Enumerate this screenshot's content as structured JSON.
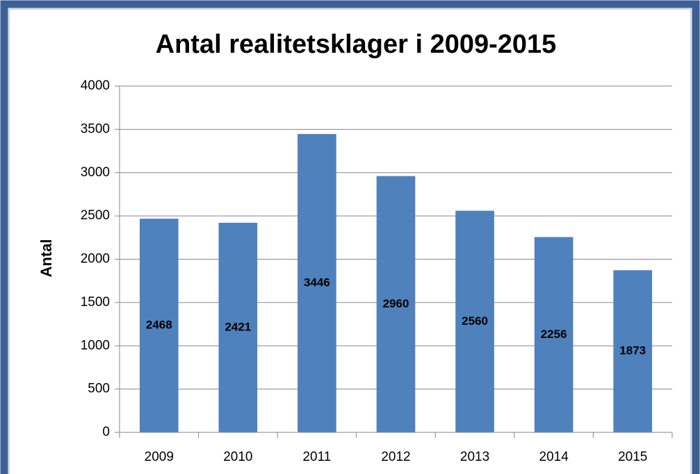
{
  "chart_data": {
    "type": "bar",
    "title": "Antal realitetsklager i 2009-2015",
    "y_label": "Antal",
    "categories": [
      "2009",
      "2010",
      "2011",
      "2012",
      "2013",
      "2014",
      "2015"
    ],
    "values": [
      2468,
      2421,
      3446,
      2960,
      2560,
      2256,
      1873
    ],
    "color": "#4f81bd",
    "ylim": [
      0,
      4000
    ],
    "yticks": [
      0,
      500,
      1000,
      1500,
      2000,
      2500,
      3000,
      3500,
      4000
    ],
    "grid": true
  }
}
